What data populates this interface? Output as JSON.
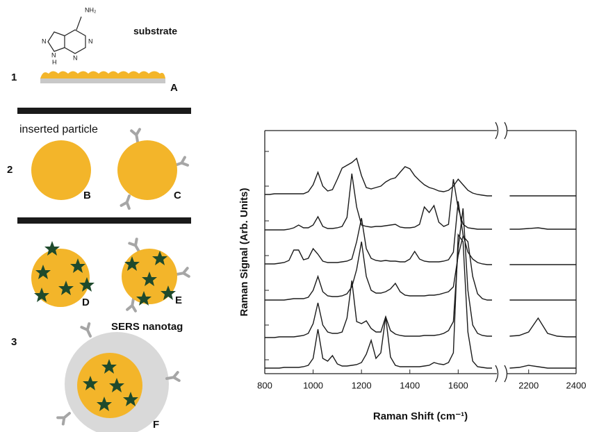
{
  "diagram": {
    "molecule": {
      "amine": "NH₂",
      "ring_atoms": [
        "N",
        "N",
        "N",
        "N"
      ],
      "hydrogen": "H"
    },
    "substrate_label": "substrate",
    "step_numbers": [
      "1",
      "2",
      "3"
    ],
    "item_labels": [
      "A",
      "B",
      "C",
      "D",
      "E",
      "F"
    ],
    "inserted_particle_label": "inserted particle",
    "sers_nanotag_label": "SERS nanotag"
  },
  "chart_data": {
    "type": "line",
    "x_label": "Raman Shift (cm⁻¹)",
    "y_label": "Raman Signal (Arb. Units)",
    "xlim": [
      800,
      2400
    ],
    "x_break": [
      1760,
      2110
    ],
    "xticks": [
      800,
      1000,
      1200,
      1400,
      1600,
      2200,
      2400
    ],
    "ylim": [
      0,
      350
    ],
    "yticks": [
      20,
      70,
      120,
      170,
      220,
      270,
      320
    ],
    "x": [
      800,
      820,
      840,
      860,
      880,
      900,
      920,
      940,
      960,
      980,
      1000,
      1020,
      1040,
      1060,
      1080,
      1100,
      1120,
      1140,
      1160,
      1180,
      1200,
      1220,
      1240,
      1260,
      1280,
      1300,
      1320,
      1340,
      1360,
      1380,
      1400,
      1420,
      1440,
      1460,
      1480,
      1500,
      1520,
      1540,
      1560,
      1580,
      1600,
      1620,
      1640,
      1660,
      1680,
      1700,
      1720,
      1740,
      2120,
      2160,
      2200,
      2240,
      2280,
      2320,
      2360,
      2400
    ],
    "series": [
      {
        "color": "#1a1a1a",
        "values": [
          258,
          258,
          259,
          259,
          259,
          259,
          259,
          259,
          259,
          262,
          272,
          290,
          270,
          263,
          265,
          280,
          296,
          300,
          304,
          310,
          285,
          268,
          266,
          268,
          270,
          276,
          280,
          282,
          290,
          298,
          295,
          285,
          278,
          272,
          268,
          266,
          263,
          262,
          264,
          270,
          280,
          272,
          264,
          260,
          258,
          257,
          256,
          256,
          256,
          256,
          256,
          256,
          256,
          256,
          256,
          256
        ]
      },
      {
        "color": "#1a1a1a",
        "values": [
          207,
          207,
          207,
          207,
          207,
          208,
          210,
          214,
          210,
          210,
          214,
          226,
          212,
          209,
          209,
          210,
          212,
          225,
          288,
          240,
          214,
          212,
          211,
          212,
          212,
          213,
          214,
          215,
          211,
          210,
          210,
          211,
          215,
          240,
          232,
          242,
          218,
          212,
          215,
          280,
          238,
          215,
          210,
          209,
          208,
          208,
          208,
          208,
          208,
          208,
          209,
          210,
          208,
          208,
          208,
          208
        ]
      },
      {
        "color": "#1a1a1a",
        "values": [
          158,
          158,
          158,
          159,
          160,
          163,
          178,
          178,
          164,
          166,
          180,
          172,
          162,
          160,
          160,
          160,
          161,
          162,
          165,
          190,
          224,
          180,
          166,
          163,
          162,
          163,
          162,
          162,
          161,
          161,
          165,
          176,
          165,
          162,
          161,
          161,
          161,
          162,
          164,
          175,
          248,
          200,
          175,
          165,
          160,
          158,
          157,
          157,
          157,
          157,
          157,
          157,
          157,
          157,
          157,
          157
        ]
      },
      {
        "color": "#1a1a1a",
        "values": [
          106,
          106,
          106,
          106,
          106,
          107,
          108,
          108,
          108,
          110,
          120,
          140,
          118,
          112,
          111,
          111,
          112,
          115,
          125,
          150,
          190,
          140,
          120,
          116,
          116,
          118,
          122,
          130,
          118,
          113,
          112,
          112,
          112,
          112,
          113,
          113,
          114,
          116,
          118,
          125,
          170,
          198,
          190,
          140,
          115,
          108,
          106,
          106,
          106,
          106,
          106,
          106,
          106,
          106,
          106,
          106
        ]
      },
      {
        "color": "#1a1a1a",
        "values": [
          52,
          52,
          52,
          53,
          53,
          53,
          53,
          54,
          55,
          58,
          72,
          102,
          70,
          60,
          58,
          58,
          60,
          80,
          134,
          75,
          72,
          76,
          65,
          60,
          60,
          82,
          62,
          57,
          55,
          54,
          54,
          54,
          54,
          55,
          55,
          55,
          56,
          58,
          62,
          75,
          180,
          238,
          120,
          70,
          58,
          55,
          54,
          54,
          54,
          55,
          60,
          80,
          58,
          54,
          53,
          53
        ]
      },
      {
        "color": "#1a1a1a",
        "values": [
          8,
          8,
          8,
          8,
          9,
          9,
          9,
          9,
          10,
          12,
          22,
          64,
          22,
          18,
          26,
          14,
          11,
          11,
          12,
          13,
          16,
          28,
          48,
          22,
          30,
          82,
          24,
          12,
          10,
          10,
          10,
          10,
          10,
          11,
          12,
          16,
          14,
          13,
          16,
          30,
          200,
          190,
          60,
          18,
          10,
          9,
          8,
          8,
          8,
          9,
          12,
          10,
          8,
          8,
          8,
          8
        ]
      }
    ]
  }
}
